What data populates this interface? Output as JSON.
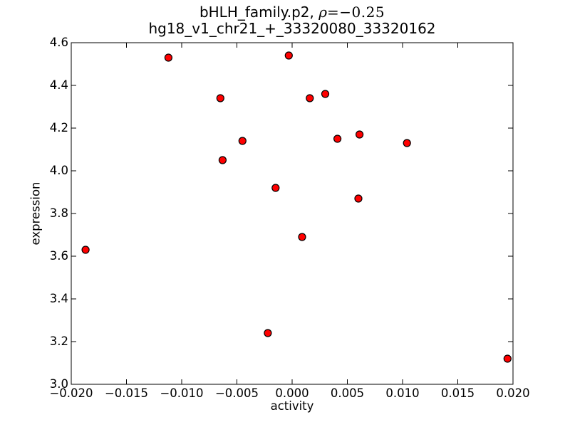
{
  "title": {
    "line1_prefix": "bHLH_family.p2, ",
    "rho": "ρ",
    "rho_value": "=−0.25",
    "line2": "hg18_v1_chr21_+_33320080_33320162"
  },
  "chart_data": {
    "type": "scatter",
    "title": "bHLH_family.p2, ρ=−0.25\nhg18_v1_chr21_+_33320080_33320162",
    "xlabel": "activity",
    "ylabel": "expression",
    "xlim": [
      -0.02,
      0.02
    ],
    "ylim": [
      3.0,
      4.6
    ],
    "xticks": [
      -0.02,
      -0.015,
      -0.01,
      -0.005,
      0.0,
      0.005,
      0.01,
      0.015,
      0.02
    ],
    "yticks": [
      3.0,
      3.2,
      3.4,
      3.6,
      3.8,
      4.0,
      4.2,
      4.4,
      4.6
    ],
    "xtick_labels": [
      "−0.020",
      "−0.015",
      "−0.010",
      "−0.005",
      "0.000",
      "0.005",
      "0.010",
      "0.015",
      "0.020"
    ],
    "ytick_labels": [
      "3.0",
      "3.2",
      "3.4",
      "3.6",
      "3.8",
      "4.0",
      "4.2",
      "4.4",
      "4.6"
    ],
    "grid": false,
    "legend": null,
    "marker": {
      "shape": "circle",
      "fill_color": "#ff0000",
      "edge_color": "#000000",
      "radius_px": 5
    },
    "frame_color": "#000000",
    "background_color": "#ffffff",
    "points": [
      {
        "x": -0.0187,
        "y": 3.63
      },
      {
        "x": -0.0112,
        "y": 4.53
      },
      {
        "x": -0.0065,
        "y": 4.34
      },
      {
        "x": -0.0063,
        "y": 4.05
      },
      {
        "x": -0.0045,
        "y": 4.14
      },
      {
        "x": -0.0022,
        "y": 3.24
      },
      {
        "x": -0.0015,
        "y": 3.92
      },
      {
        "x": -0.0003,
        "y": 4.54
      },
      {
        "x": 0.0009,
        "y": 3.69
      },
      {
        "x": 0.0016,
        "y": 4.34
      },
      {
        "x": 0.003,
        "y": 4.36
      },
      {
        "x": 0.0041,
        "y": 4.15
      },
      {
        "x": 0.006,
        "y": 3.87
      },
      {
        "x": 0.0061,
        "y": 4.17
      },
      {
        "x": 0.0104,
        "y": 4.13
      },
      {
        "x": 0.0195,
        "y": 3.12
      }
    ]
  }
}
